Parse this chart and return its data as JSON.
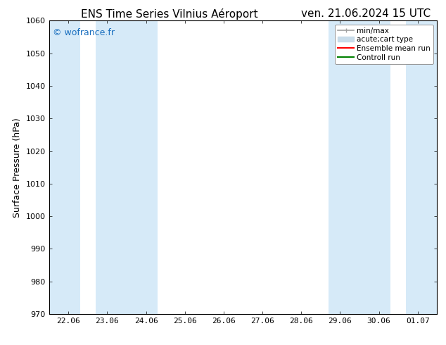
{
  "title_left": "ENS Time Series Vilnius Aéroport",
  "title_right": "ven. 21.06.2024 15 UTC",
  "ylabel": "Surface Pressure (hPa)",
  "ylim": [
    970,
    1060
  ],
  "yticks": [
    970,
    980,
    990,
    1000,
    1010,
    1020,
    1030,
    1040,
    1050,
    1060
  ],
  "x_labels": [
    "22.06",
    "23.06",
    "24.06",
    "25.06",
    "26.06",
    "27.06",
    "28.06",
    "29.06",
    "30.06",
    "01.07"
  ],
  "x_positions": [
    0,
    1,
    2,
    3,
    4,
    5,
    6,
    7,
    8,
    9
  ],
  "xlim": [
    -0.5,
    9.5
  ],
  "shaded_bands": [
    {
      "xmin": -0.5,
      "xmax": 0.3
    },
    {
      "xmin": 0.7,
      "xmax": 2.3
    },
    {
      "xmin": 6.7,
      "xmax": 8.3
    },
    {
      "xmin": 8.7,
      "xmax": 9.5
    }
  ],
  "band_color": "#d6eaf8",
  "background_color": "#ffffff",
  "watermark_text": "© wofrance.fr",
  "watermark_color": "#1a6fbf",
  "legend_entries": [
    {
      "label": "min/max",
      "color": "#a0a0a0",
      "lw": 1.5,
      "style": "|-|"
    },
    {
      "label": "acute;cart type",
      "color": "#c8dcea",
      "lw": 8,
      "style": "solid"
    },
    {
      "label": "Ensemble mean run",
      "color": "red",
      "lw": 1.5,
      "style": "solid"
    },
    {
      "label": "Controll run",
      "color": "green",
      "lw": 1.5,
      "style": "solid"
    }
  ],
  "title_fontsize": 11,
  "tick_fontsize": 8,
  "ylabel_fontsize": 9,
  "legend_fontsize": 7.5,
  "watermark_fontsize": 9,
  "fig_bg": "#ffffff"
}
